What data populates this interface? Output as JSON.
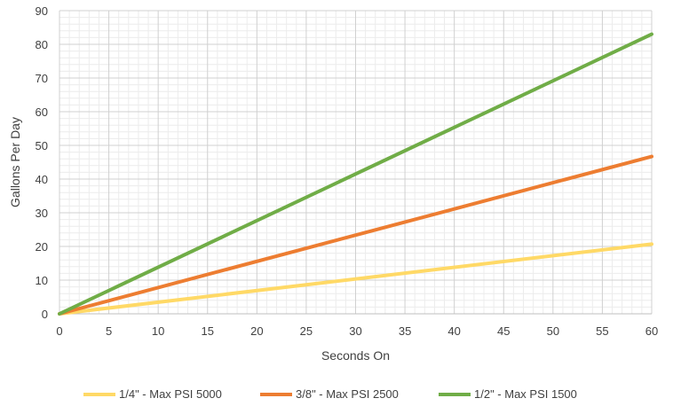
{
  "chart_data": {
    "type": "line",
    "title": "",
    "xlabel": "Seconds On",
    "ylabel": "Gallons Per Day",
    "xlim": [
      0,
      60
    ],
    "ylim": [
      0,
      90
    ],
    "x_ticks": [
      0,
      5,
      10,
      15,
      20,
      25,
      30,
      35,
      40,
      45,
      50,
      55,
      60
    ],
    "y_ticks": [
      0,
      10,
      20,
      30,
      40,
      50,
      60,
      70,
      80,
      90
    ],
    "grid": true,
    "legend_position": "bottom",
    "series": [
      {
        "name": "1/4\" - Max PSI 5000",
        "color": "#FFD966",
        "x": [
          0,
          60
        ],
        "y": [
          0,
          20.7
        ]
      },
      {
        "name": "3/8\" - Max PSI 2500",
        "color": "#ED7D31",
        "x": [
          0,
          60
        ],
        "y": [
          0,
          46.7
        ]
      },
      {
        "name": "1/2\" - Max PSI 1500",
        "color": "#70AD47",
        "x": [
          0,
          60
        ],
        "y": [
          0,
          83
        ]
      }
    ]
  }
}
